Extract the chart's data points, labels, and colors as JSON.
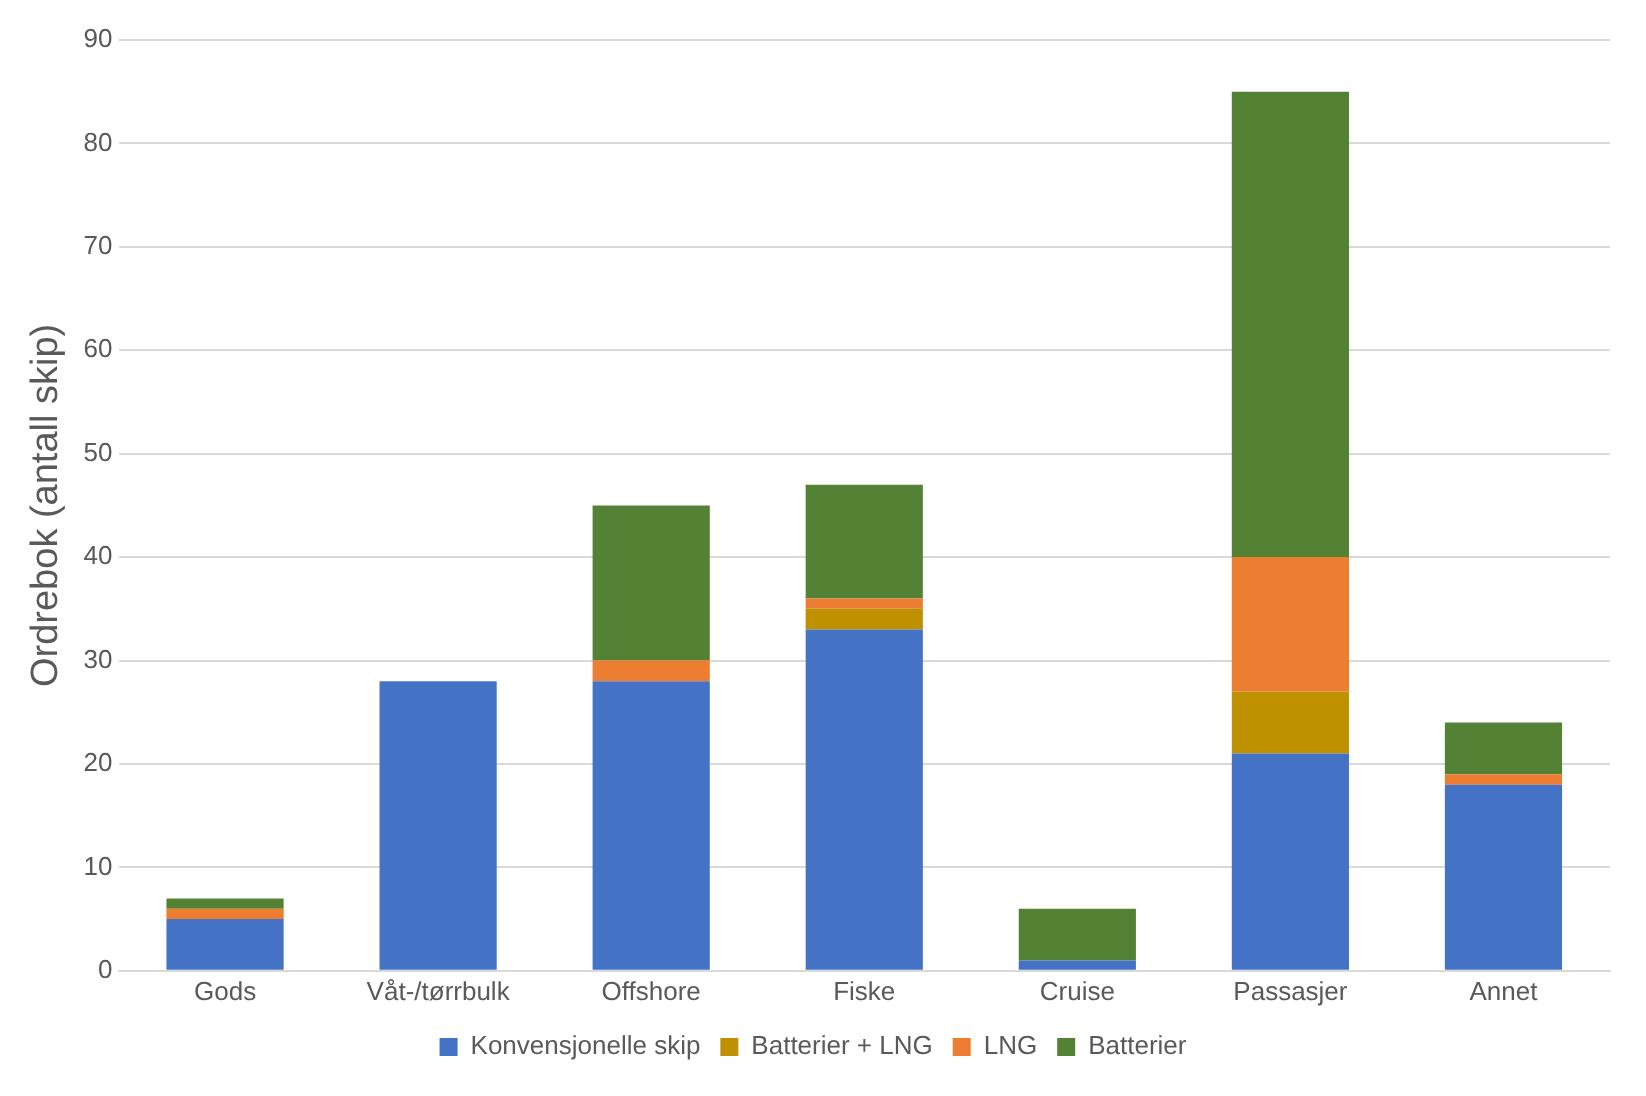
{
  "chart_data": {
    "type": "bar",
    "stacked": true,
    "ylabel": "Ordrebok (antall skip)",
    "categories": [
      "Gods",
      "Våt-/tørrbulk",
      "Offshore",
      "Fiske",
      "Cruise",
      "Passasjer",
      "Annet"
    ],
    "series": [
      {
        "name": "Konvensjonelle skip",
        "color": "#4472c4",
        "values": [
          5,
          28,
          28,
          33,
          1,
          21,
          18
        ]
      },
      {
        "name": "Batterier + LNG",
        "color": "#bf9000",
        "values": [
          0,
          0,
          0,
          2,
          0,
          6,
          0
        ]
      },
      {
        "name": "LNG",
        "color": "#ed7d31",
        "values": [
          1,
          0,
          2,
          1,
          0,
          13,
          1
        ]
      },
      {
        "name": "Batterier",
        "color": "#548235",
        "values": [
          1,
          0,
          15,
          11,
          5,
          45,
          5
        ]
      }
    ],
    "ylim": [
      0,
      90
    ],
    "yticks": [
      0,
      10,
      20,
      30,
      40,
      50,
      60,
      70,
      80,
      90
    ],
    "grid": "y",
    "legend": "bottom"
  }
}
